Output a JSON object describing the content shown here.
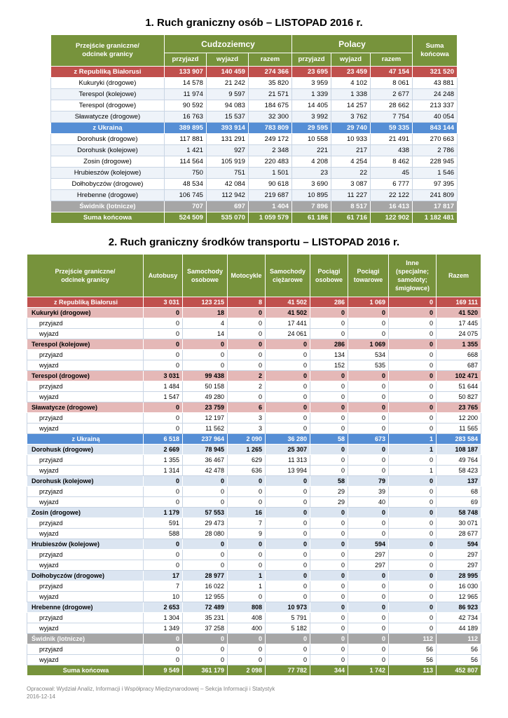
{
  "doc": {
    "title1": "1. Ruch graniczny osób – LISTOPAD 2016 r.",
    "title2": "2. Ruch graniczny środków transportu – LISTOPAD 2016 r.",
    "footer_line1": "Opracował: Wydział Analiz, Informacji i Współpracy Międzynarodowej – Sekcja Informacji i Statystyk",
    "footer_line2": "2016-12-14"
  },
  "colors": {
    "header_green": "#77933C",
    "belarus_red": "#C0504D",
    "belarus_pink": "#E5B8B7",
    "ukraine_blue": "#558ED5",
    "ukraine_light_blue": "#DBE5F1",
    "swidnik_gray": "#A6A6A6"
  },
  "table1": {
    "header": {
      "col0": "Przejście graniczne/\nodcinek granicy",
      "group_foreigners": "Cudzoziemcy",
      "group_poles": "Polacy",
      "subcols": [
        "przyjazd",
        "wyjazd",
        "razem",
        "przyjazd",
        "wyjazd",
        "razem"
      ],
      "total": "Suma\nkońcowa"
    },
    "rows": [
      {
        "label": "z Republiką Białorusi",
        "style": "belarus",
        "values": [
          "133 907",
          "140 459",
          "274 366",
          "23 695",
          "23 459",
          "47 154",
          "321 520"
        ]
      },
      {
        "label": "Kukuryki (drogowe)",
        "style": "data",
        "values": [
          "14 578",
          "21 242",
          "35 820",
          "3 959",
          "4 102",
          "8 061",
          "43 881"
        ]
      },
      {
        "label": "Terespol (kolejowe)",
        "style": "data-alt",
        "values": [
          "11 974",
          "9 597",
          "21 571",
          "1 339",
          "1 338",
          "2 677",
          "24 248"
        ]
      },
      {
        "label": "Terespol (drogowe)",
        "style": "data",
        "values": [
          "90 592",
          "94 083",
          "184 675",
          "14 405",
          "14 257",
          "28 662",
          "213 337"
        ]
      },
      {
        "label": "Sławatycze (drogowe)",
        "style": "data-alt",
        "values": [
          "16 763",
          "15 537",
          "32 300",
          "3 992",
          "3 762",
          "7 754",
          "40 054"
        ]
      },
      {
        "label": "z Ukrainą",
        "style": "ukraine",
        "values": [
          "389 895",
          "393 914",
          "783 809",
          "29 595",
          "29 740",
          "59 335",
          "843 144"
        ]
      },
      {
        "label": "Dorohusk (drogowe)",
        "style": "data",
        "values": [
          "117 881",
          "131 291",
          "249 172",
          "10 558",
          "10 933",
          "21 491",
          "270 663"
        ]
      },
      {
        "label": "Dorohusk (kolejowe)",
        "style": "data-alt",
        "values": [
          "1 421",
          "927",
          "2 348",
          "221",
          "217",
          "438",
          "2 786"
        ]
      },
      {
        "label": "Zosin (drogowe)",
        "style": "data",
        "values": [
          "114 564",
          "105 919",
          "220 483",
          "4 208",
          "4 254",
          "8 462",
          "228 945"
        ]
      },
      {
        "label": "Hrubieszów (kolejowe)",
        "style": "data-alt",
        "values": [
          "750",
          "751",
          "1 501",
          "23",
          "22",
          "45",
          "1 546"
        ]
      },
      {
        "label": "Dołhobyczów (drogowe)",
        "style": "data",
        "values": [
          "48 534",
          "42 084",
          "90 618",
          "3 690",
          "3 087",
          "6 777",
          "97 395"
        ]
      },
      {
        "label": "Hrebenne (drogowe)",
        "style": "data-alt",
        "values": [
          "106 745",
          "112 942",
          "219 687",
          "10 895",
          "11 227",
          "22 122",
          "241 809"
        ]
      },
      {
        "label": "Świdnik (lotnicze)",
        "style": "gray",
        "values": [
          "707",
          "697",
          "1 404",
          "7 896",
          "8 517",
          "16 413",
          "17 817"
        ]
      },
      {
        "label": "Suma końcowa",
        "style": "total",
        "values": [
          "524 509",
          "535 070",
          "1 059 579",
          "61 186",
          "61 716",
          "122 902",
          "1 182 481"
        ]
      }
    ]
  },
  "table2": {
    "headers": [
      "Przejście graniczne/\nodcinek granicy",
      "Autobusy",
      "Samochody\nosobowe",
      "Motocykle",
      "Samochody\nciężarowe",
      "Pociągi\nosobowe",
      "Pociągi\ntowarowe",
      "Inne\n(specjalne;\nsamoloty;\nśmigłowce)",
      "Razem"
    ],
    "rows": [
      {
        "label": "z Republiką Białorusi",
        "style": "belarus",
        "values": [
          "3 031",
          "123 215",
          "8",
          "41 502",
          "286",
          "1 069",
          "0",
          "169 111"
        ]
      },
      {
        "label": "Kukuryki (drogowe)",
        "style": "pink",
        "values": [
          "0",
          "18",
          "0",
          "41 502",
          "0",
          "0",
          "0",
          "41 520"
        ]
      },
      {
        "label": "przyjazd",
        "style": "detail",
        "values": [
          "0",
          "4",
          "0",
          "17 441",
          "0",
          "0",
          "0",
          "17 445"
        ]
      },
      {
        "label": "wyjazd",
        "style": "detail",
        "values": [
          "0",
          "14",
          "0",
          "24 061",
          "0",
          "0",
          "0",
          "24 075"
        ]
      },
      {
        "label": "Terespol (kolejowe)",
        "style": "pink",
        "values": [
          "0",
          "0",
          "0",
          "0",
          "286",
          "1 069",
          "0",
          "1 355"
        ]
      },
      {
        "label": "przyjazd",
        "style": "detail",
        "values": [
          "0",
          "0",
          "0",
          "0",
          "134",
          "534",
          "0",
          "668"
        ]
      },
      {
        "label": "wyjazd",
        "style": "detail",
        "values": [
          "0",
          "0",
          "0",
          "0",
          "152",
          "535",
          "0",
          "687"
        ]
      },
      {
        "label": "Terespol (drogowe)",
        "style": "pink",
        "values": [
          "3 031",
          "99 438",
          "2",
          "0",
          "0",
          "0",
          "0",
          "102 471"
        ]
      },
      {
        "label": "przyjazd",
        "style": "detail",
        "values": [
          "1 484",
          "50 158",
          "2",
          "0",
          "0",
          "0",
          "0",
          "51 644"
        ]
      },
      {
        "label": "wyjazd",
        "style": "detail",
        "values": [
          "1 547",
          "49 280",
          "0",
          "0",
          "0",
          "0",
          "0",
          "50 827"
        ]
      },
      {
        "label": "Sławatycze (drogowe)",
        "style": "pink",
        "values": [
          "0",
          "23 759",
          "6",
          "0",
          "0",
          "0",
          "0",
          "23 765"
        ]
      },
      {
        "label": "przyjazd",
        "style": "detail",
        "values": [
          "0",
          "12 197",
          "3",
          "0",
          "0",
          "0",
          "0",
          "12 200"
        ]
      },
      {
        "label": "wyjazd",
        "style": "detail",
        "values": [
          "0",
          "11 562",
          "3",
          "0",
          "0",
          "0",
          "0",
          "11 565"
        ]
      },
      {
        "label": "z Ukrainą",
        "style": "ukraine",
        "values": [
          "6 518",
          "237 964",
          "2 090",
          "36 280",
          "58",
          "673",
          "1",
          "283 584"
        ]
      },
      {
        "label": "Dorohusk (drogowe)",
        "style": "lightblue",
        "values": [
          "2 669",
          "78 945",
          "1 265",
          "25 307",
          "0",
          "0",
          "1",
          "108 187"
        ]
      },
      {
        "label": "przyjazd",
        "style": "detail",
        "values": [
          "1 355",
          "36 467",
          "629",
          "11 313",
          "0",
          "0",
          "0",
          "49 764"
        ]
      },
      {
        "label": "wyjazd",
        "style": "detail",
        "values": [
          "1 314",
          "42 478",
          "636",
          "13 994",
          "0",
          "0",
          "1",
          "58 423"
        ]
      },
      {
        "label": "Dorohusk (kolejowe)",
        "style": "lightblue",
        "values": [
          "0",
          "0",
          "0",
          "0",
          "58",
          "79",
          "0",
          "137"
        ]
      },
      {
        "label": "przyjazd",
        "style": "detail",
        "values": [
          "0",
          "0",
          "0",
          "0",
          "29",
          "39",
          "0",
          "68"
        ]
      },
      {
        "label": "wyjazd",
        "style": "detail",
        "values": [
          "0",
          "0",
          "0",
          "0",
          "29",
          "40",
          "0",
          "69"
        ]
      },
      {
        "label": "Zosin (drogowe)",
        "style": "lightblue",
        "values": [
          "1 179",
          "57 553",
          "16",
          "0",
          "0",
          "0",
          "0",
          "58 748"
        ]
      },
      {
        "label": "przyjazd",
        "style": "detail",
        "values": [
          "591",
          "29 473",
          "7",
          "0",
          "0",
          "0",
          "0",
          "30 071"
        ]
      },
      {
        "label": "wyjazd",
        "style": "detail",
        "values": [
          "588",
          "28 080",
          "9",
          "0",
          "0",
          "0",
          "0",
          "28 677"
        ]
      },
      {
        "label": "Hrubieszów (kolejowe)",
        "style": "lightblue",
        "values": [
          "0",
          "0",
          "0",
          "0",
          "0",
          "594",
          "0",
          "594"
        ]
      },
      {
        "label": "przyjazd",
        "style": "detail",
        "values": [
          "0",
          "0",
          "0",
          "0",
          "0",
          "297",
          "0",
          "297"
        ]
      },
      {
        "label": "wyjazd",
        "style": "detail",
        "values": [
          "0",
          "0",
          "0",
          "0",
          "0",
          "297",
          "0",
          "297"
        ]
      },
      {
        "label": "Dołhobyczów (drogowe)",
        "style": "lightblue",
        "values": [
          "17",
          "28 977",
          "1",
          "0",
          "0",
          "0",
          "0",
          "28 995"
        ]
      },
      {
        "label": "przyjazd",
        "style": "detail",
        "values": [
          "7",
          "16 022",
          "1",
          "0",
          "0",
          "0",
          "0",
          "16 030"
        ]
      },
      {
        "label": "wyjazd",
        "style": "detail",
        "values": [
          "10",
          "12 955",
          "0",
          "0",
          "0",
          "0",
          "0",
          "12 965"
        ]
      },
      {
        "label": "Hrebenne (drogowe)",
        "style": "lightblue",
        "values": [
          "2 653",
          "72 489",
          "808",
          "10 973",
          "0",
          "0",
          "0",
          "86 923"
        ]
      },
      {
        "label": "przyjazd",
        "style": "detail",
        "values": [
          "1 304",
          "35 231",
          "408",
          "5 791",
          "0",
          "0",
          "0",
          "42 734"
        ]
      },
      {
        "label": "wyjazd",
        "style": "detail",
        "values": [
          "1 349",
          "37 258",
          "400",
          "5 182",
          "0",
          "0",
          "0",
          "44 189"
        ]
      },
      {
        "label": "Świdnik (lotnicze)",
        "style": "gray",
        "values": [
          "0",
          "0",
          "0",
          "0",
          "0",
          "0",
          "112",
          "112"
        ]
      },
      {
        "label": "przyjazd",
        "style": "detail",
        "values": [
          "0",
          "0",
          "0",
          "0",
          "0",
          "0",
          "56",
          "56"
        ]
      },
      {
        "label": "wyjazd",
        "style": "detail",
        "values": [
          "0",
          "0",
          "0",
          "0",
          "0",
          "0",
          "56",
          "56"
        ]
      },
      {
        "label": "Suma końcowa",
        "style": "total",
        "values": [
          "9 549",
          "361 179",
          "2 098",
          "77 782",
          "344",
          "1 742",
          "113",
          "452 807"
        ]
      }
    ]
  }
}
